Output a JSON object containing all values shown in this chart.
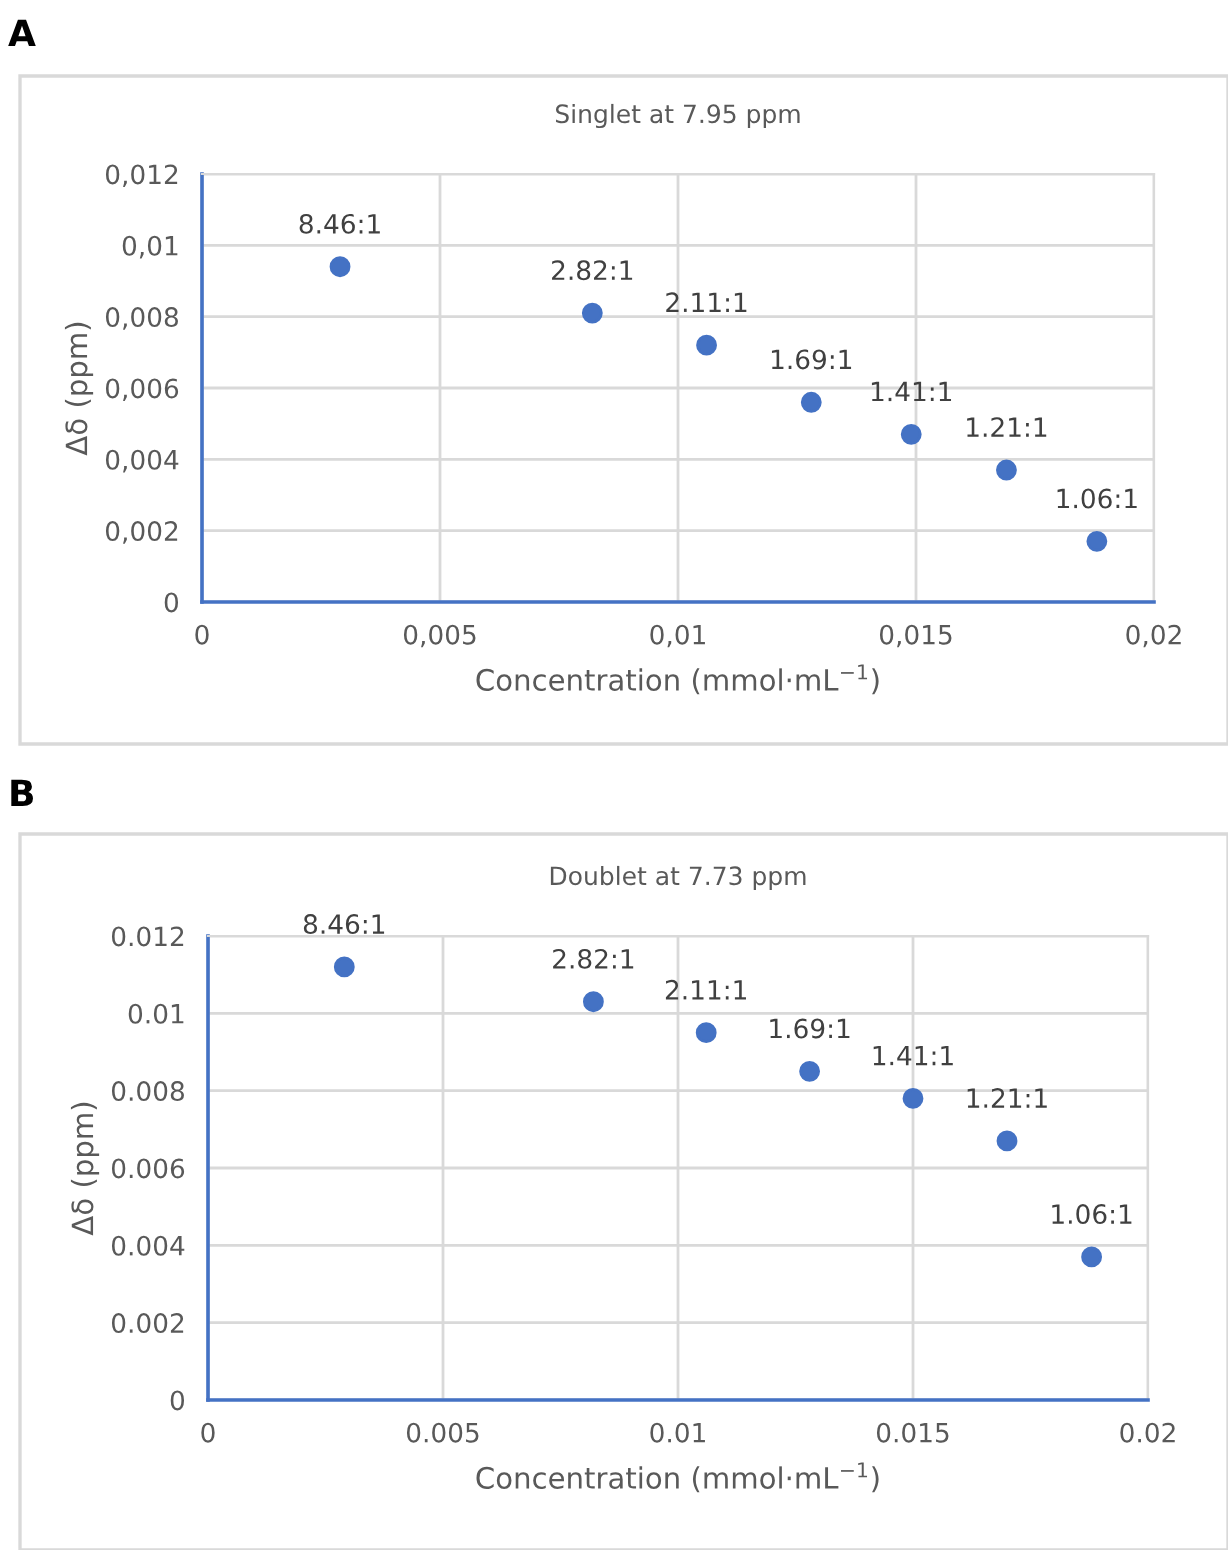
{
  "chart_data": [
    {
      "type": "scatter",
      "title": "Singlet at 7.95 ppm",
      "xlabel": "Concentration (mmol·mL$^{−1}$)",
      "ylabel": "Δδ (ppm)",
      "x": [
        0.0029,
        0.0082,
        0.0106,
        0.0128,
        0.0149,
        0.0169,
        0.0188
      ],
      "series": [
        {
          "color": "#4472c4",
          "values": [
            0.0094,
            0.0081,
            0.0072,
            0.0056,
            0.0047,
            0.0037,
            0.0017
          ]
        }
      ],
      "xlim": [
        0,
        0.02
      ],
      "ylim": [
        0,
        0.012
      ],
      "xticks": [
        0,
        {
          "value": 0.005,
          "label": "0,005"
        },
        {
          "value": 0.01,
          "label": "0,01"
        },
        {
          "value": 0.015,
          "label": "0,015"
        },
        {
          "value": 0.02,
          "label": "0,02"
        }
      ],
      "yticks": [
        0,
        {
          "value": 0.002,
          "label": "0,002"
        },
        {
          "value": 0.004,
          "label": "0,004"
        },
        {
          "value": 0.006,
          "label": "0,006"
        },
        {
          "value": 0.008,
          "label": "0,008"
        },
        {
          "value": 0.01,
          "label": "0,01"
        },
        {
          "value": 0.012,
          "label": "0,012"
        }
      ],
      "grid": true,
      "marker": "circle",
      "annotations": [
        "A",
        {
          "text": "8.46:1",
          "x": 0.0029,
          "y": 0.0094
        },
        {
          "text": "2.82:1",
          "x": 0.0082,
          "y": 0.0081
        },
        {
          "text": "2.11:1",
          "x": 0.0106,
          "y": 0.0072
        },
        {
          "text": "1.69:1",
          "x": 0.0128,
          "y": 0.0056
        },
        {
          "text": "1.41:1",
          "x": 0.0149,
          "y": 0.0047
        },
        {
          "text": "1.21:1",
          "x": 0.0169,
          "y": 0.0037
        },
        {
          "text": "1.06:1",
          "x": 0.0188,
          "y": 0.0017
        }
      ]
    },
    {
      "type": "scatter",
      "title": "Doublet at 7.73 ppm",
      "xlabel": "Concentration (mmol·mL$^{−1}$)",
      "ylabel": "Δδ (ppm)",
      "x": [
        0.0029,
        0.0082,
        0.0106,
        0.0128,
        0.015,
        0.017,
        0.0188
      ],
      "series": [
        {
          "color": "#4472c4",
          "values": [
            0.0112,
            0.0103,
            0.0095,
            0.0085,
            0.0078,
            0.0067,
            0.0037
          ]
        }
      ],
      "xlim": [
        0,
        0.02
      ],
      "ylim": [
        0,
        0.012
      ],
      "xticks": [
        0,
        0.005,
        0.01,
        0.015,
        0.02
      ],
      "yticks": [
        0,
        0.002,
        0.004,
        0.006,
        0.008,
        0.01,
        0.012
      ],
      "grid": true,
      "marker": "circle",
      "annotations": [
        "B",
        {
          "text": "8.46:1",
          "x": 0.0029,
          "y": 0.0112
        },
        {
          "text": "2.82:1",
          "x": 0.0082,
          "y": 0.0103
        },
        {
          "text": "2.11:1",
          "x": 0.0106,
          "y": 0.0095
        },
        {
          "text": "1.69:1",
          "x": 0.0128,
          "y": 0.0085
        },
        {
          "text": "1.41:1",
          "x": 0.015,
          "y": 0.0078
        },
        {
          "text": "1.21:1",
          "x": 0.017,
          "y": 0.0067
        },
        {
          "text": "1.06:1",
          "x": 0.0188,
          "y": 0.0037
        }
      ]
    }
  ]
}
